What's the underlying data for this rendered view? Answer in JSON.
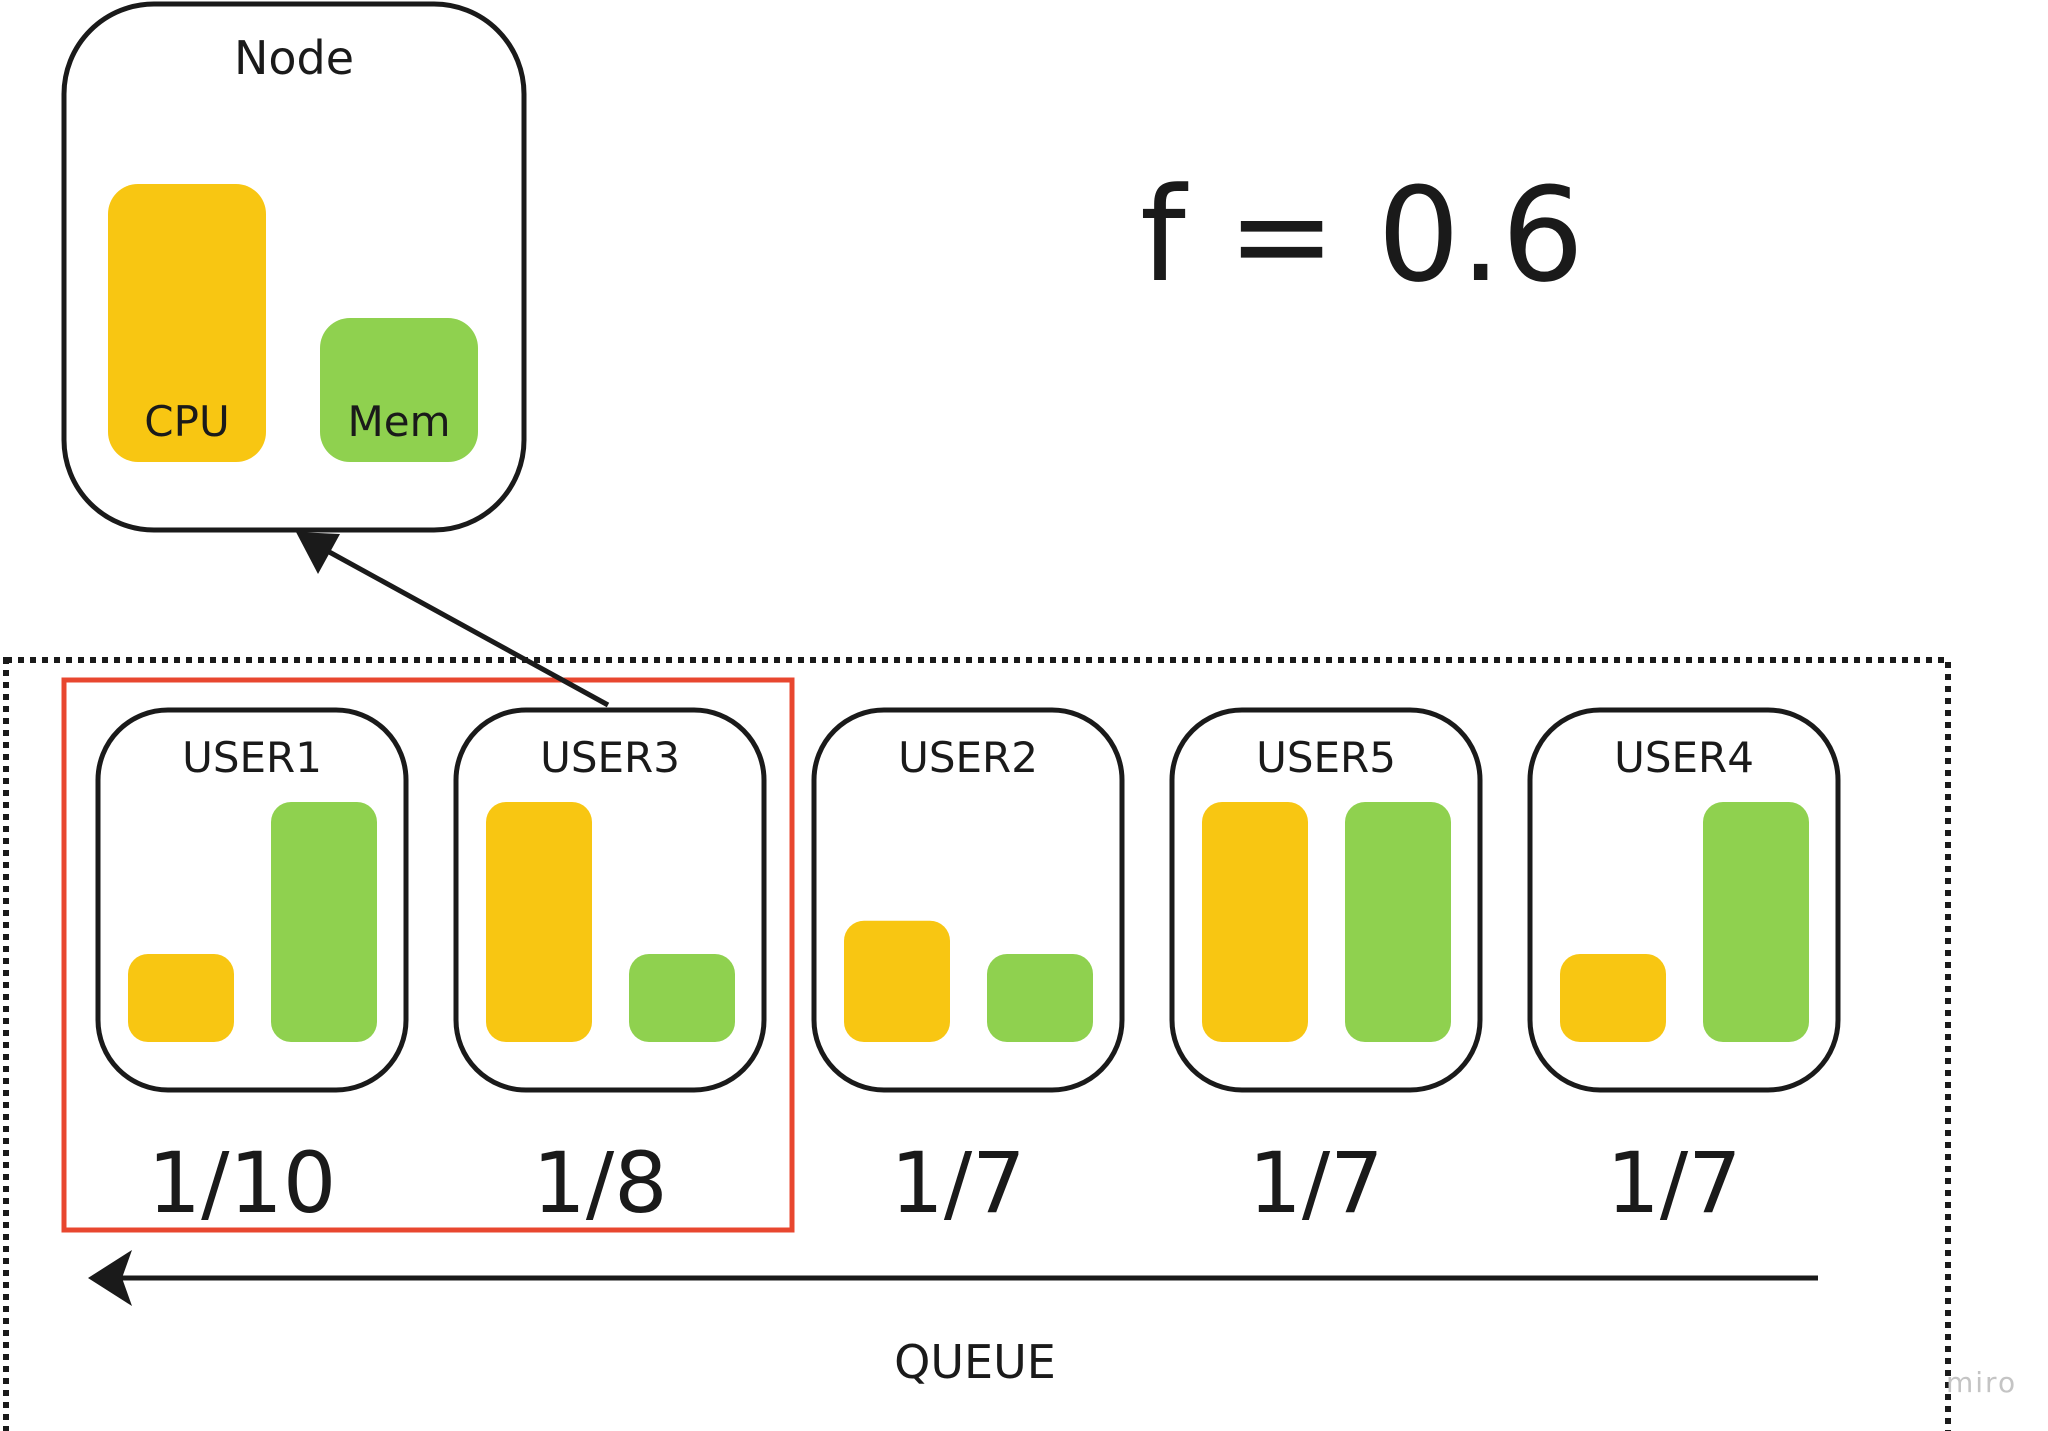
{
  "node": {
    "title": "Node",
    "resources": [
      {
        "label": "CPU",
        "color": "#f8c612"
      },
      {
        "label": "Mem",
        "color": "#8fd14f"
      }
    ]
  },
  "formula": "f = 0.6",
  "queue": {
    "label": "QUEUE",
    "users": [
      {
        "name": "USER1",
        "share": "1/10",
        "cpu_level": 0.36,
        "mem_level": 1.0
      },
      {
        "name": "USER3",
        "share": "1/8",
        "cpu_level": 1.0,
        "mem_level": 0.36
      },
      {
        "name": "USER2",
        "share": "1/7",
        "cpu_level": 0.5,
        "mem_level": 0.36
      },
      {
        "name": "USER5",
        "share": "1/7",
        "cpu_level": 1.0,
        "mem_level": 1.0
      },
      {
        "name": "USER4",
        "share": "1/7",
        "cpu_level": 0.36,
        "mem_level": 1.0
      }
    ],
    "selected": [
      "USER1",
      "USER3"
    ]
  },
  "colors": {
    "cpu": "#f8c612",
    "mem": "#8fd14f",
    "highlight": "#e8472f",
    "stroke": "#1a1a1a"
  },
  "watermark": "miro"
}
